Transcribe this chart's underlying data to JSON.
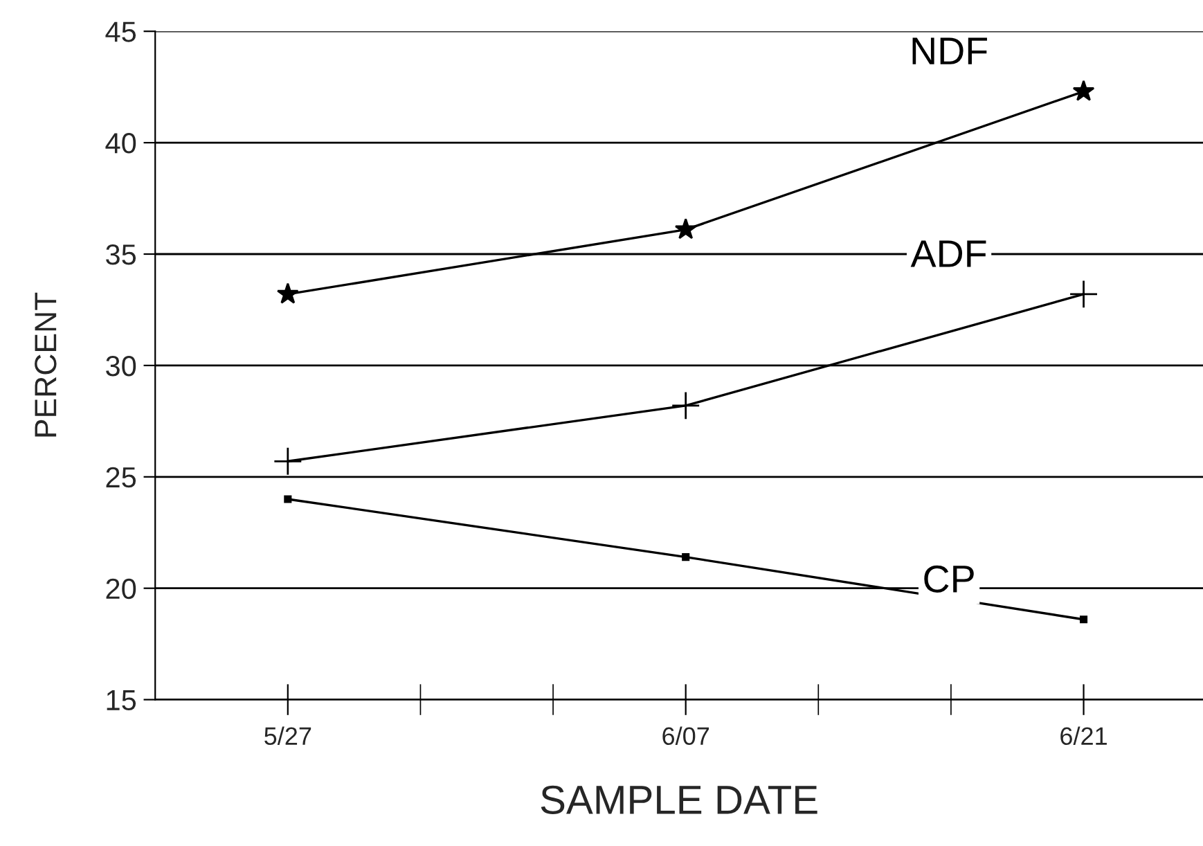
{
  "chart_data": {
    "type": "line",
    "xlabel": "SAMPLE DATE",
    "ylabel": "PERCENT",
    "categories": [
      "5/27",
      "6/07",
      "6/21"
    ],
    "series": [
      {
        "name": "NDF",
        "color": "#000000",
        "marker": "star",
        "values": [
          33.2,
          36.1,
          42.3
        ]
      },
      {
        "name": "ADF",
        "color": "#000000",
        "marker": "cross",
        "values": [
          25.7,
          28.2,
          33.2
        ]
      },
      {
        "name": "CP",
        "color": "#000000",
        "marker": "square",
        "values": [
          24.0,
          21.4,
          18.6
        ]
      }
    ],
    "ylim": [
      15,
      45
    ],
    "yticks": [
      15,
      20,
      25,
      30,
      35,
      40,
      45
    ],
    "grid": "y",
    "legend": false,
    "line_style": "solid"
  }
}
